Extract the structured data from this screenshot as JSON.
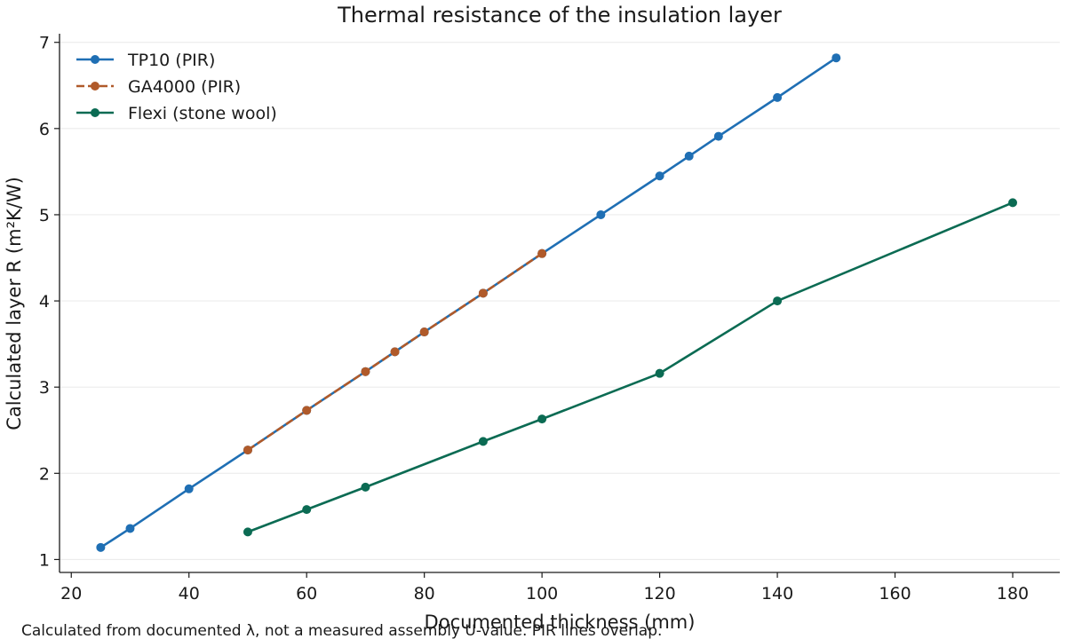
{
  "chart_data": {
    "type": "line",
    "title": "Thermal resistance of the insulation layer",
    "xlabel": "Documented thickness (mm)",
    "ylabel": "Calculated layer R (m²K/W)",
    "xlim": [
      18,
      188
    ],
    "ylim": [
      0.85,
      7.1
    ],
    "xticks": [
      20,
      40,
      60,
      80,
      100,
      120,
      140,
      160,
      180
    ],
    "yticks": [
      1,
      2,
      3,
      4,
      5,
      6,
      7
    ],
    "grid": "horizontal",
    "legend_position": "top-left",
    "footnote": "Calculated from documented λ, not a measured assembly U-value. PIR lines overlap.",
    "series": [
      {
        "name": "TP10 (PIR)",
        "color": "#1f6fb4",
        "dash": "solid",
        "x": [
          25,
          30,
          40,
          50,
          60,
          70,
          75,
          80,
          90,
          100,
          110,
          120,
          125,
          130,
          140,
          150
        ],
        "y": [
          1.14,
          1.36,
          1.82,
          2.27,
          2.73,
          3.18,
          3.41,
          3.64,
          4.09,
          4.55,
          5.0,
          5.45,
          5.68,
          5.91,
          6.36,
          6.82
        ]
      },
      {
        "name": "GA4000 (PIR)",
        "color": "#b05a2a",
        "dash": "dashed",
        "x": [
          50,
          60,
          70,
          75,
          80,
          90,
          100
        ],
        "y": [
          2.27,
          2.73,
          3.18,
          3.41,
          3.64,
          4.09,
          4.55
        ]
      },
      {
        "name": "Flexi (stone wool)",
        "color": "#0b6b53",
        "dash": "solid",
        "x": [
          50,
          60,
          70,
          90,
          100,
          120,
          140,
          180
        ],
        "y": [
          1.32,
          1.58,
          1.84,
          2.37,
          2.63,
          3.16,
          4.0,
          5.14
        ]
      }
    ]
  }
}
